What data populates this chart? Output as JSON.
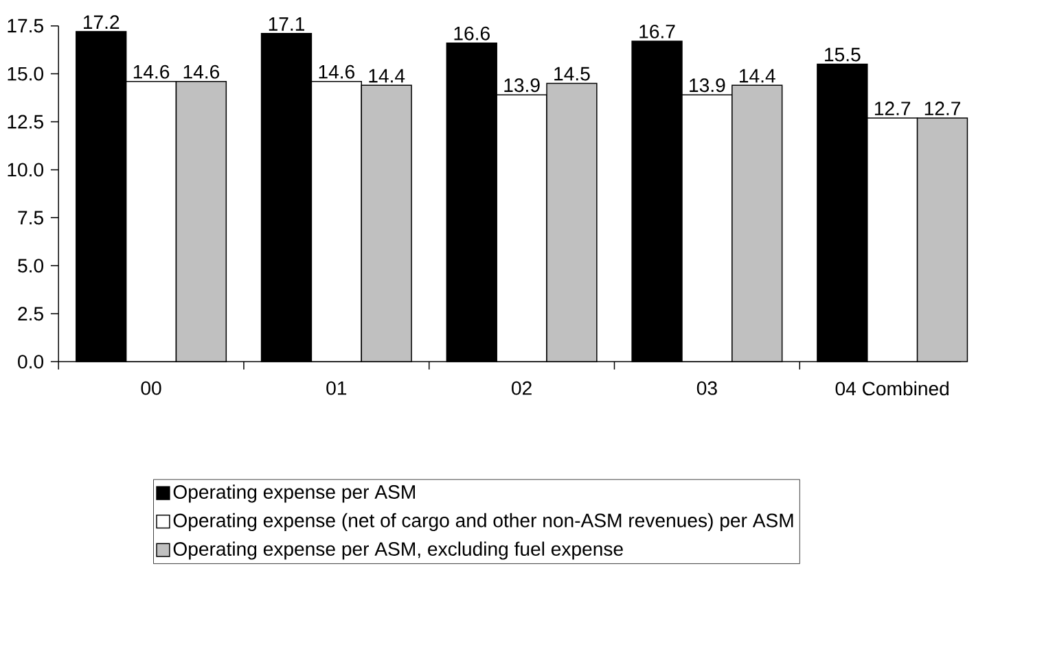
{
  "chart_data": {
    "type": "bar",
    "categories": [
      "00",
      "01",
      "02",
      "03",
      "04 Combined"
    ],
    "series": [
      {
        "name": "Operating expense per ASM",
        "color": "#000000",
        "values": [
          17.2,
          17.1,
          16.6,
          16.7,
          15.5
        ]
      },
      {
        "name": "Operating expense (net of cargo and other non-ASM revenues) per ASM",
        "color": "#ffffff",
        "values": [
          14.6,
          14.6,
          13.9,
          13.9,
          12.7
        ]
      },
      {
        "name": "Operating expense per ASM, excluding fuel expense",
        "color": "#c0c0c0",
        "values": [
          14.6,
          14.4,
          14.5,
          14.4,
          12.7
        ]
      }
    ],
    "ylim": [
      0,
      17.5
    ],
    "yticks": [
      {
        "value": 0,
        "label": "0.0"
      },
      {
        "value": 2.5,
        "label": "2.5"
      },
      {
        "value": 5,
        "label": "5.0"
      },
      {
        "value": 7.5,
        "label": "7.5"
      },
      {
        "value": 10,
        "label": "10.0"
      },
      {
        "value": 12.5,
        "label": "12.5"
      },
      {
        "value": 15,
        "label": "15.0"
      },
      {
        "value": 17.5,
        "label": "17.5"
      }
    ],
    "data_labels": true,
    "legend": "bottom",
    "grid": false
  }
}
